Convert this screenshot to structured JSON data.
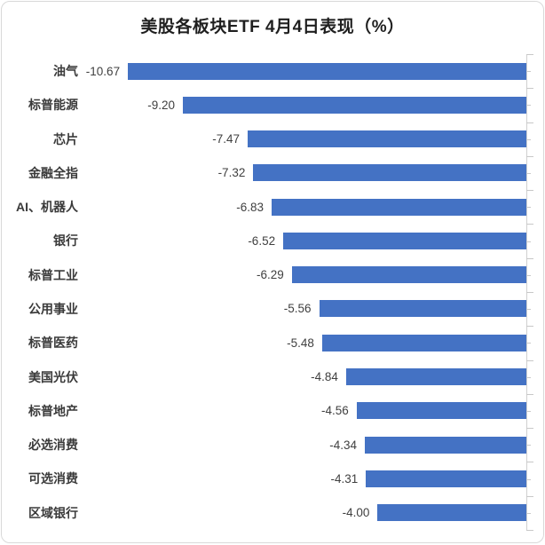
{
  "chart_data": {
    "type": "bar",
    "orientation": "horizontal",
    "title": "美股各板块ETF 4月4日表现（%）",
    "categories": [
      "油气",
      "标普能源",
      "芯片",
      "金融全指",
      "AI、机器人",
      "银行",
      "标普工业",
      "公用事业",
      "标普医药",
      "美国光伏",
      "标普地产",
      "必选消费",
      "可选消费",
      "区域银行"
    ],
    "values": [
      -10.67,
      -9.2,
      -7.47,
      -7.32,
      -6.83,
      -6.52,
      -6.29,
      -5.56,
      -5.48,
      -4.84,
      -4.56,
      -4.34,
      -4.31,
      -4.0
    ],
    "value_labels": [
      "-10.67",
      "-9.20",
      "-7.47",
      "-7.32",
      "-6.83",
      "-6.52",
      "-6.29",
      "-5.56",
      "-5.48",
      "-4.84",
      "-4.56",
      "-4.34",
      "-4.31",
      "-4.00"
    ],
    "xlabel": "",
    "ylabel": "",
    "xlim": [
      -12,
      0
    ],
    "grid": false,
    "legend_position": "none",
    "data_labels": "outside-end",
    "bar_color": "#4472c4",
    "axis_color": "#d0d0d0",
    "frame_color": "#d9d9d9"
  }
}
